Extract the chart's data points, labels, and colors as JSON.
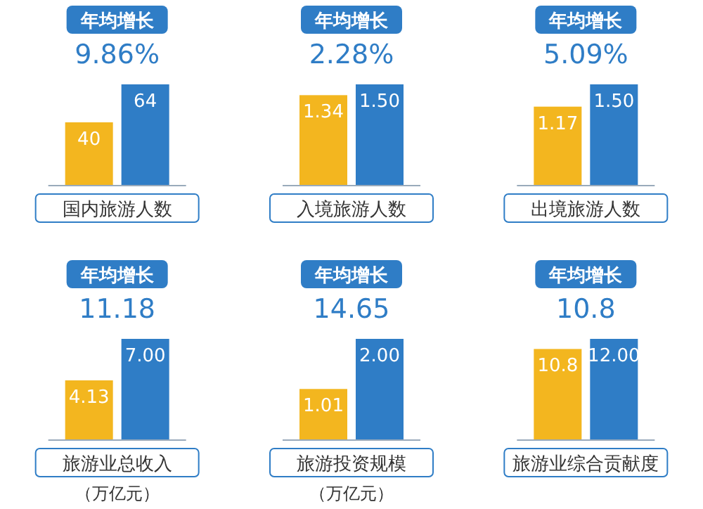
{
  "chart_data": [
    {
      "type": "bar",
      "title": "年均增长",
      "subtitle": "9.86%",
      "xlabel": "国内旅游人数",
      "categories": [
        null,
        null
      ],
      "values": [
        40,
        64
      ],
      "colors": [
        "#f3b61f",
        "#2f7dc6"
      ],
      "value_labels": [
        "40",
        "64"
      ]
    },
    {
      "type": "bar",
      "title": "年均增长",
      "subtitle": "2.28%",
      "xlabel": "入境旅游人数",
      "categories": [
        null,
        null
      ],
      "values": [
        1.34,
        1.5
      ],
      "colors": [
        "#f3b61f",
        "#2f7dc6"
      ],
      "value_labels": [
        "1.34",
        "1.50"
      ]
    },
    {
      "type": "bar",
      "title": "年均增长",
      "subtitle": "5.09%",
      "xlabel": "出境旅游人数",
      "categories": [
        null,
        null
      ],
      "values": [
        1.17,
        1.5
      ],
      "colors": [
        "#f3b61f",
        "#2f7dc6"
      ],
      "value_labels": [
        "1.17",
        "1.50"
      ]
    },
    {
      "type": "bar",
      "title": "年均增长",
      "subtitle": "11.18",
      "xlabel": "旅游业总收入",
      "annotations": [
        "（万亿元）"
      ],
      "categories": [
        null,
        null
      ],
      "values": [
        4.13,
        7.0
      ],
      "colors": [
        "#f3b61f",
        "#2f7dc6"
      ],
      "value_labels": [
        "4.13",
        "7.00"
      ]
    },
    {
      "type": "bar",
      "title": "年均增长",
      "subtitle": "14.65",
      "xlabel": "旅游投资规模",
      "annotations": [
        "（万亿元）"
      ],
      "categories": [
        null,
        null
      ],
      "values": [
        1.01,
        2.0
      ],
      "colors": [
        "#f3b61f",
        "#2f7dc6"
      ],
      "value_labels": [
        "1.01",
        "2.00"
      ]
    },
    {
      "type": "bar",
      "title": "年均增长",
      "subtitle": "10.8",
      "xlabel": "旅游业综合贡献度",
      "categories": [
        null,
        null
      ],
      "values": [
        10.8,
        12.0
      ],
      "colors": [
        "#f3b61f",
        "#2f7dc6"
      ],
      "value_labels": [
        "10.8",
        "12.00"
      ]
    }
  ]
}
